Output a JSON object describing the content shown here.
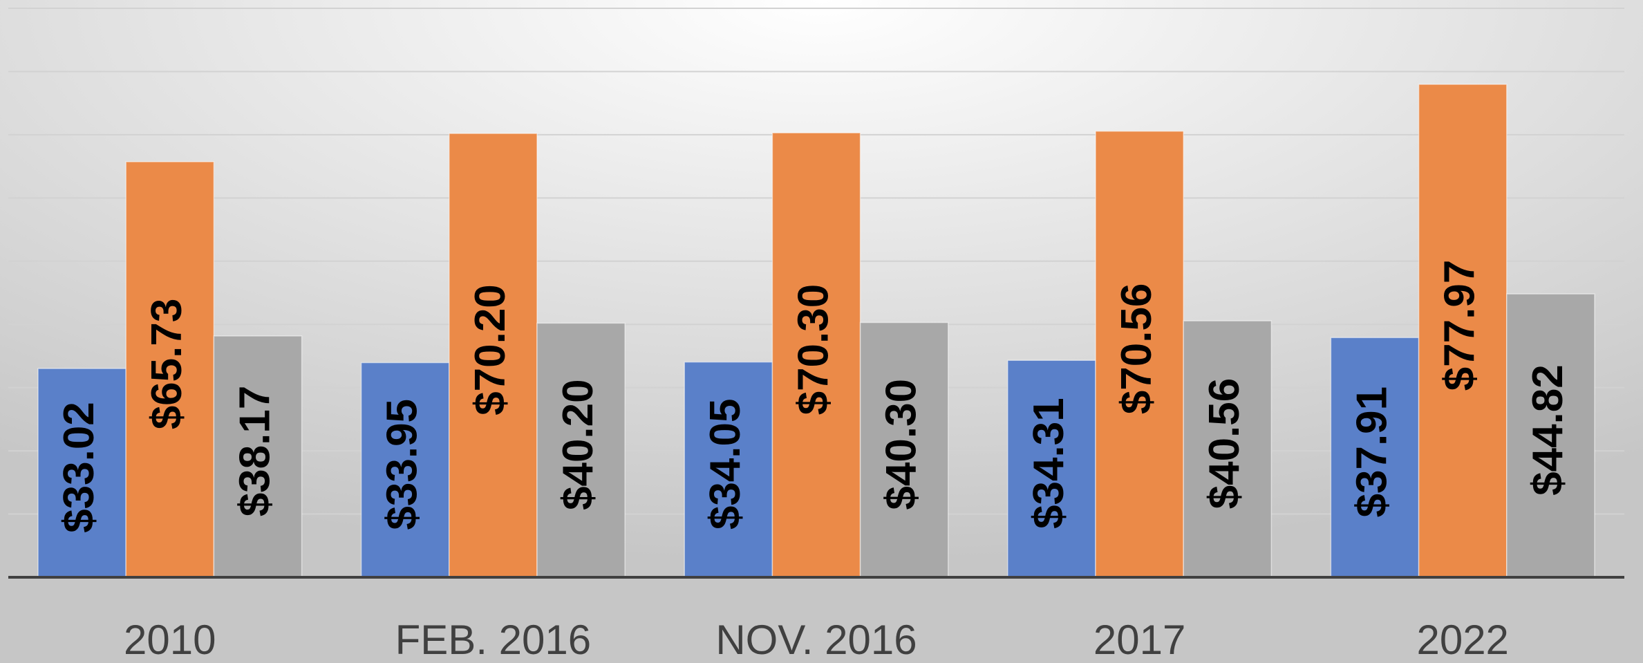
{
  "chart_data": {
    "type": "bar",
    "categories": [
      "2010",
      "FEB. 2016",
      "NOV. 2016",
      "2017",
      "2022"
    ],
    "series": [
      {
        "color": "#5a80c9",
        "values": [
          33.02,
          33.95,
          34.05,
          34.31,
          37.91
        ],
        "value_labels": [
          "$33.02",
          "$33.95",
          "$34.05",
          "$34.31",
          "$37.91"
        ]
      },
      {
        "color": "#eb8a48",
        "values": [
          65.73,
          70.2,
          70.3,
          70.56,
          77.97
        ],
        "value_labels": [
          "$65.73",
          "$70.20",
          "$70.30",
          "$70.56",
          "$77.97"
        ]
      },
      {
        "color": "#a8a8a8",
        "values": [
          38.17,
          40.2,
          40.3,
          40.56,
          44.82
        ],
        "value_labels": [
          "$38.17",
          "$40.20",
          "$40.30",
          "$40.56",
          "$44.82"
        ]
      }
    ],
    "ylim": [
      0,
      90
    ],
    "yticks": [
      0,
      10,
      20,
      30,
      40,
      50,
      60,
      70,
      80,
      90
    ],
    "grid": true
  }
}
